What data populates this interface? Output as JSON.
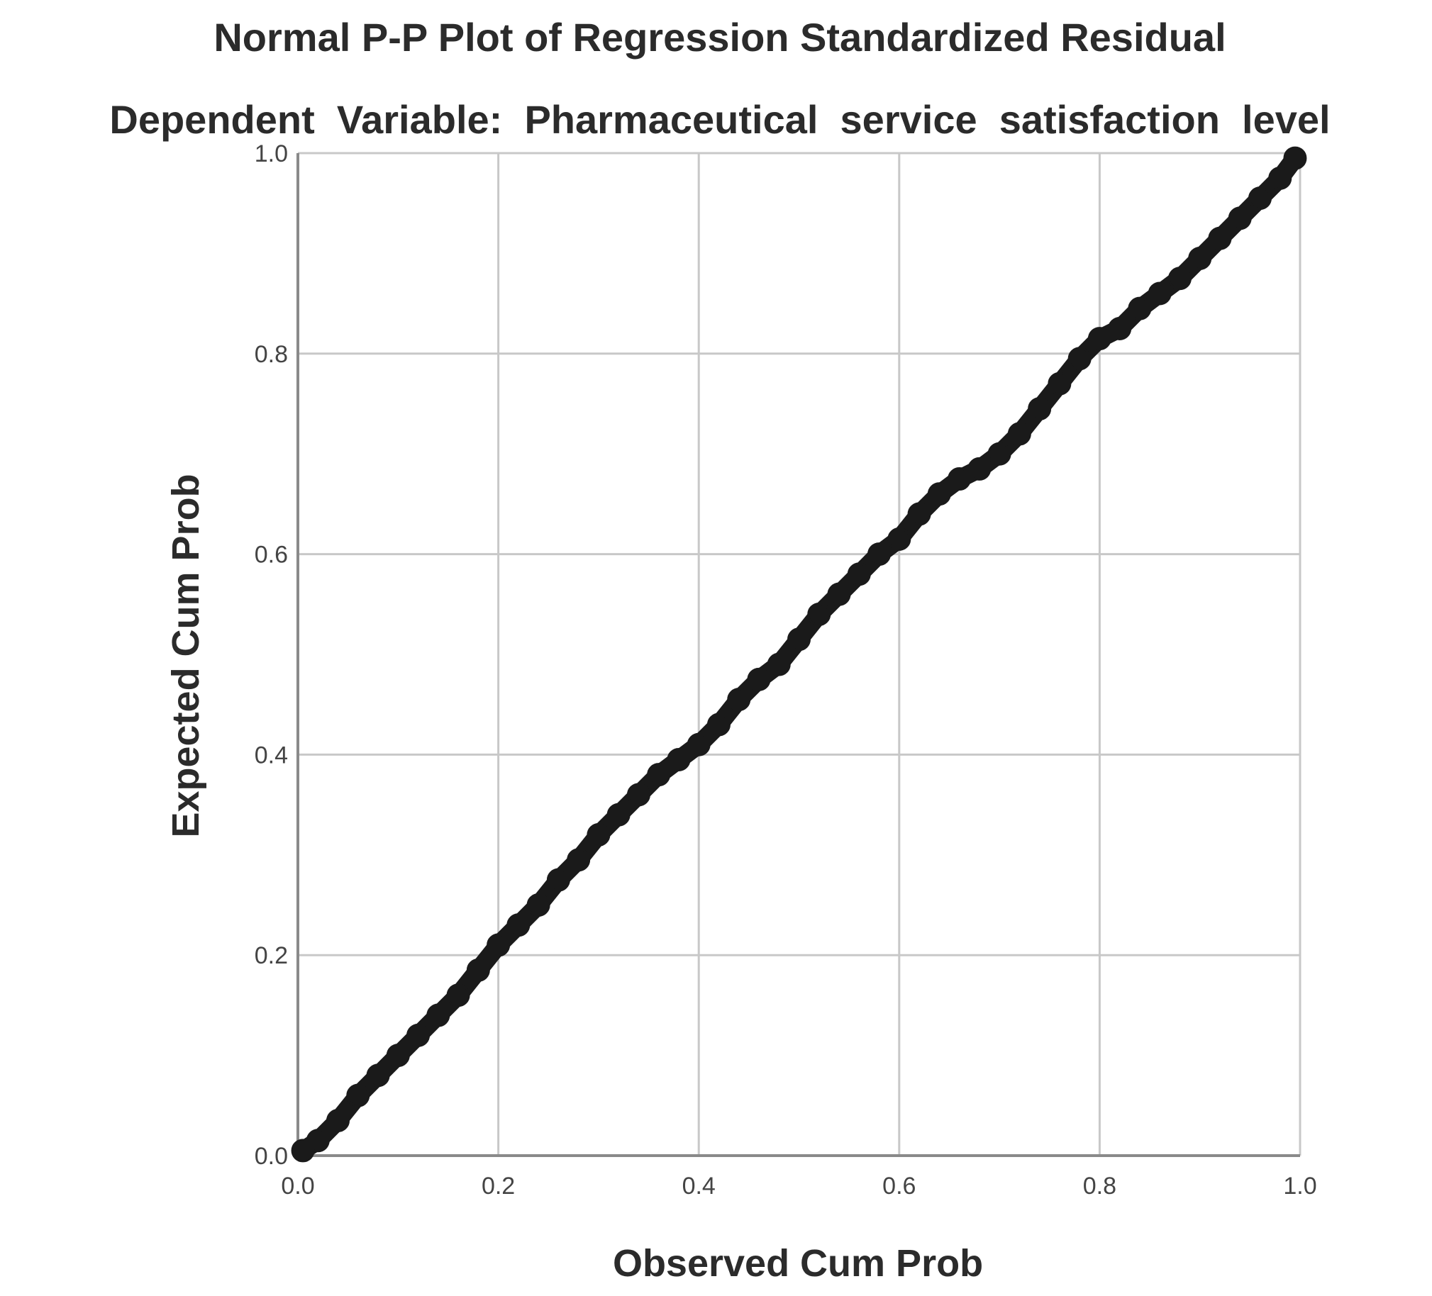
{
  "chart_data": {
    "type": "scatter",
    "title": "Normal P-P Plot of Regression Standardized Residual",
    "subtitle": "Dependent  Variable:  Pharmaceutical  service  satisfaction  level",
    "xlabel": "Observed Cum Prob",
    "ylabel": "Expected Cum Prob",
    "xlim": [
      0.0,
      1.0
    ],
    "ylim": [
      0.0,
      1.0
    ],
    "x_ticks": [
      "0.0",
      "0.2",
      "0.4",
      "0.6",
      "0.8",
      "1.0"
    ],
    "y_ticks": [
      "0.0",
      "0.2",
      "0.4",
      "0.6",
      "0.8",
      "1.0"
    ],
    "grid": true,
    "legend": "none",
    "colors": {
      "points": "#1a1a1a",
      "grid": "#c8c8c8",
      "axis": "#8a8a8a",
      "text": "#2b2b2b"
    },
    "x": [
      0.005,
      0.02,
      0.04,
      0.06,
      0.08,
      0.1,
      0.12,
      0.14,
      0.16,
      0.18,
      0.2,
      0.22,
      0.24,
      0.26,
      0.28,
      0.3,
      0.32,
      0.34,
      0.36,
      0.38,
      0.4,
      0.42,
      0.44,
      0.46,
      0.48,
      0.5,
      0.52,
      0.54,
      0.56,
      0.58,
      0.6,
      0.62,
      0.64,
      0.66,
      0.68,
      0.7,
      0.72,
      0.74,
      0.76,
      0.78,
      0.8,
      0.82,
      0.84,
      0.86,
      0.88,
      0.9,
      0.92,
      0.94,
      0.96,
      0.98,
      0.995
    ],
    "y": [
      0.005,
      0.015,
      0.035,
      0.06,
      0.08,
      0.1,
      0.12,
      0.14,
      0.16,
      0.185,
      0.21,
      0.23,
      0.25,
      0.275,
      0.295,
      0.32,
      0.34,
      0.36,
      0.38,
      0.395,
      0.41,
      0.43,
      0.455,
      0.475,
      0.49,
      0.515,
      0.54,
      0.56,
      0.58,
      0.6,
      0.615,
      0.64,
      0.66,
      0.675,
      0.685,
      0.7,
      0.72,
      0.745,
      0.77,
      0.795,
      0.815,
      0.825,
      0.845,
      0.86,
      0.875,
      0.895,
      0.915,
      0.935,
      0.955,
      0.975,
      0.995
    ]
  }
}
